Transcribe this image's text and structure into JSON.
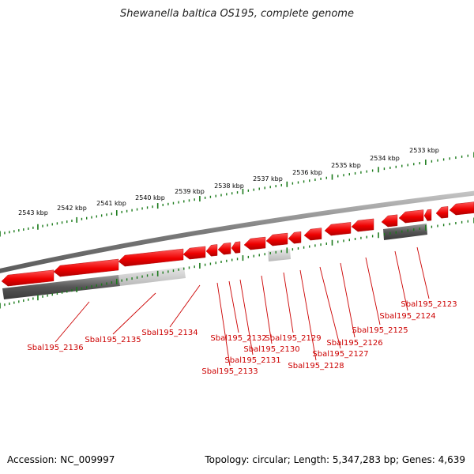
{
  "title": "Shewanella baltica OS195, complete genome",
  "footer": {
    "accession": "Accession: NC_009997",
    "summary": "Topology: circular; Length: 5,347,283 bp; Genes: 4,639"
  },
  "colors": {
    "gene_fill": "#ff0000",
    "ticks": "#1a7a1a",
    "backbone": "#888888",
    "label": "#cc0000"
  },
  "kbp_labels": [
    "2543 kbp",
    "2542 kbp",
    "2541 kbp",
    "2540 kbp",
    "2539 kbp",
    "2538 kbp",
    "2537 kbp",
    "2536 kbp",
    "2535 kbp",
    "2534 kbp",
    "2533 kbp"
  ],
  "genes": [
    "Sbal195_2136",
    "Sbal195_2135",
    "Sbal195_2134",
    "Sbal195_2133",
    "Sbal195_2132",
    "Sbal195_2131",
    "Sbal195_2130",
    "Sbal195_2129",
    "Sbal195_2128",
    "Sbal195_2127",
    "Sbal195_2126",
    "Sbal195_2125",
    "Sbal195_2124",
    "Sbal195_2123"
  ]
}
